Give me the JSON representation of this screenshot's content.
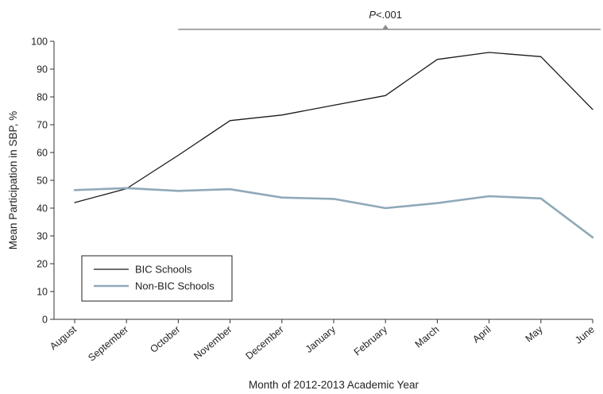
{
  "chart_data": {
    "type": "line",
    "title": "",
    "xlabel": "Month of 2012-2013 Academic Year",
    "ylabel": "Mean Participation in SBP, %",
    "ylim": [
      0,
      100
    ],
    "yticks": [
      0,
      10,
      20,
      30,
      40,
      50,
      60,
      70,
      80,
      90,
      100
    ],
    "categories": [
      "August",
      "September",
      "October",
      "November",
      "December",
      "January",
      "February",
      "March",
      "April",
      "May",
      "June"
    ],
    "series": [
      {
        "name": "BIC Schools",
        "color": "#1a1a1a",
        "values": [
          42,
          47,
          59,
          71.5,
          73.5,
          77,
          80.5,
          93.5,
          96,
          94.5,
          75.5
        ]
      },
      {
        "name": "Non-BIC Schools",
        "color": "#8fa9b9",
        "values": [
          46.5,
          47.2,
          46.2,
          46.8,
          43.8,
          43.3,
          40,
          41.8,
          44.3,
          43.5,
          29.5
        ]
      }
    ],
    "annotation": {
      "label_italic": "P",
      "label_rest": "<.001",
      "from_category": "October",
      "to_category": "June",
      "line_color": "#8c8c8c"
    },
    "legend_placement": "bottom-left",
    "grid": false
  }
}
